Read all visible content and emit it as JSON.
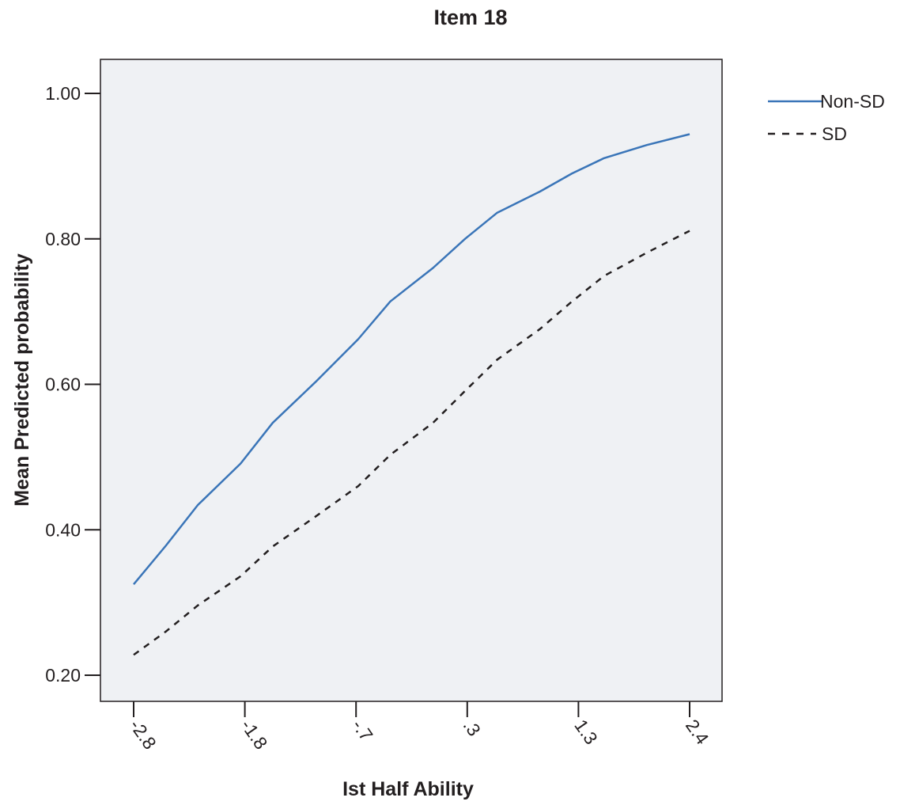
{
  "chart_data": {
    "type": "line",
    "title": "Item 18",
    "xlabel": "Ist Half Ability",
    "ylabel": "Mean Predicted probability",
    "x_tick_labels": [
      "-2.8",
      "-1.8",
      "-.7",
      ".3",
      "1.3",
      "2.4"
    ],
    "y_tick_labels": [
      "0.20",
      "0.40",
      "0.60",
      "0.80",
      "1.00"
    ],
    "y_ticks": [
      0.2,
      0.4,
      0.6,
      0.8,
      1.0
    ],
    "xlim": [
      -2.8,
      2.4
    ],
    "ylim": [
      0.15,
      1.05
    ],
    "grid": false,
    "legend_position": "top-right",
    "x": [
      -2.8,
      -2.5,
      -2.2,
      -1.8,
      -1.5,
      -1.1,
      -0.7,
      -0.4,
      0.0,
      0.3,
      0.6,
      1.0,
      1.3,
      1.6,
      2.0,
      2.4
    ],
    "series": [
      {
        "name": "Non-SD",
        "color": "#3a75b8",
        "style": "solid",
        "values": [
          0.325,
          0.378,
          0.434,
          0.491,
          0.547,
          0.603,
          0.662,
          0.714,
          0.76,
          0.8,
          0.836,
          0.865,
          0.89,
          0.911,
          0.929,
          0.944
        ]
      },
      {
        "name": "SD",
        "color": "#231f20",
        "style": "dashed",
        "values": [
          0.228,
          0.26,
          0.296,
          0.336,
          0.377,
          0.418,
          0.46,
          0.503,
          0.547,
          0.591,
          0.634,
          0.676,
          0.714,
          0.749,
          0.781,
          0.811
        ]
      }
    ]
  }
}
